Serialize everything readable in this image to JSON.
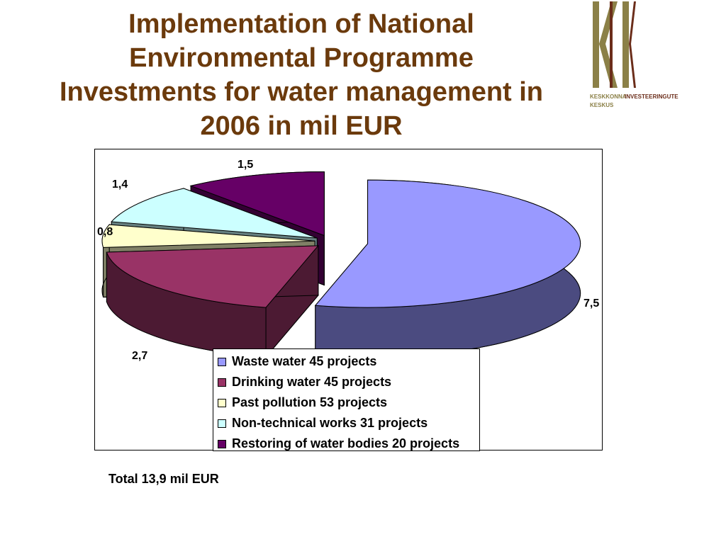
{
  "title_lines": [
    "Implementation of National",
    "Environmental Programme",
    "Investments for water management in",
    "2006 in mil EUR"
  ],
  "logo": {
    "letters": "KIK",
    "line1_a": "KESKKONNA",
    "line1_b": "INVESTEERINGUTE",
    "line2": "KESKUS",
    "colors": {
      "olive": "#8b8047",
      "brown": "#6b2d1a"
    }
  },
  "chart_data": {
    "type": "pie",
    "style": "3d-exploded",
    "slices": [
      {
        "label": "Waste water 45 projects",
        "value": 7.5,
        "value_label": "7,5",
        "color": "#9999ff",
        "side_color": "#4b4b80"
      },
      {
        "label": "Drinking water 45 projects",
        "value": 2.7,
        "value_label": "2,7",
        "color": "#993366",
        "side_color": "#4c1a33"
      },
      {
        "label": "Past pollution 53 projects",
        "value": 0.8,
        "value_label": "0,8",
        "color": "#ffffcc",
        "side_color": "#808066"
      },
      {
        "label": "Non-technical works 31 projects",
        "value": 1.4,
        "value_label": "1,4",
        "color": "#ccffff",
        "side_color": "#668080"
      },
      {
        "label": "Restoring of water bodies 20 projects",
        "value": 1.5,
        "value_label": "1,5",
        "color": "#660066",
        "side_color": "#330033"
      }
    ],
    "legend_position": "bottom-right"
  },
  "total_text": "Total 13,9 mil EUR"
}
